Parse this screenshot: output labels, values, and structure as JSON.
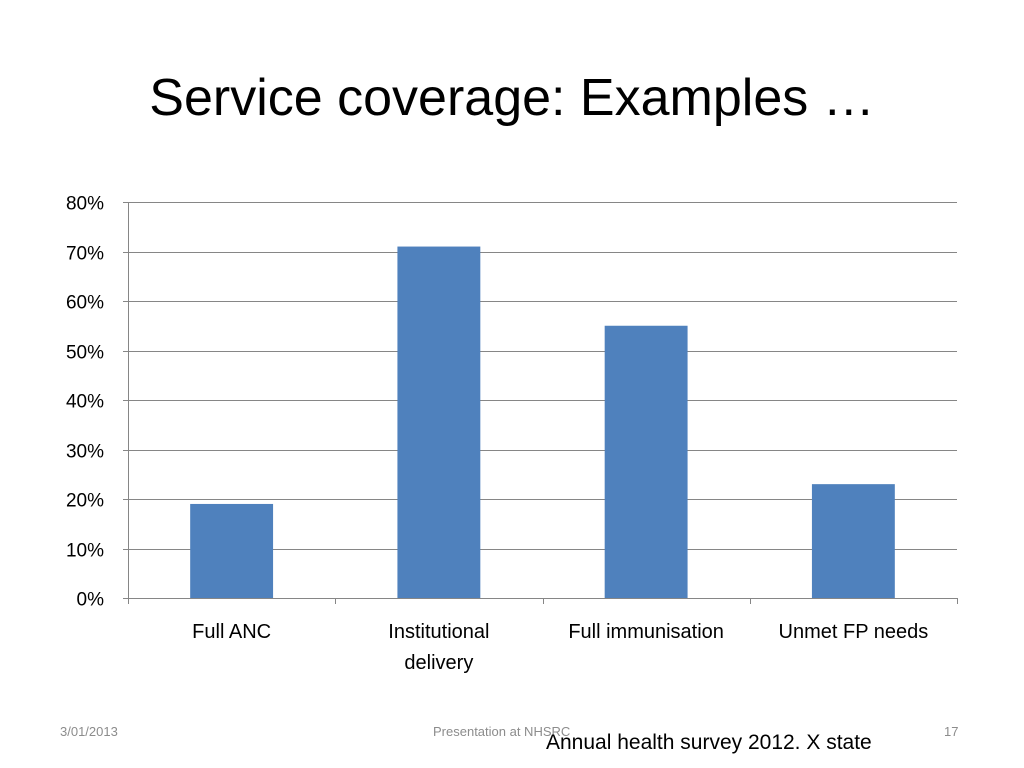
{
  "slide": {
    "title": "Service coverage: Examples …",
    "source_note": "Annual health survey 2012. X state"
  },
  "footer": {
    "date": "3/01/2013",
    "center_text": "Presentation at NHSRC",
    "page_number": "17"
  },
  "chart_data": {
    "type": "bar",
    "title": "",
    "xlabel": "",
    "ylabel": "",
    "categories": [
      "Full ANC",
      "Institutional delivery",
      "Full immunisation",
      "Unmet FP needs"
    ],
    "category_label_lines": [
      [
        "Full ANC"
      ],
      [
        "Institutional",
        "delivery"
      ],
      [
        "Full immunisation"
      ],
      [
        "Unmet FP needs"
      ]
    ],
    "values": [
      0.19,
      0.71,
      0.55,
      0.23
    ],
    "ylim": [
      0,
      0.8
    ],
    "yticks": [
      0,
      0.1,
      0.2,
      0.3,
      0.4,
      0.5,
      0.6,
      0.7,
      0.8
    ],
    "ytick_labels": [
      "0%",
      "10%",
      "20%",
      "30%",
      "40%",
      "50%",
      "60%",
      "70%",
      "80%"
    ],
    "grid": true,
    "legend": "none",
    "bar_color": "#4f81bd",
    "grid_color": "#868686"
  }
}
